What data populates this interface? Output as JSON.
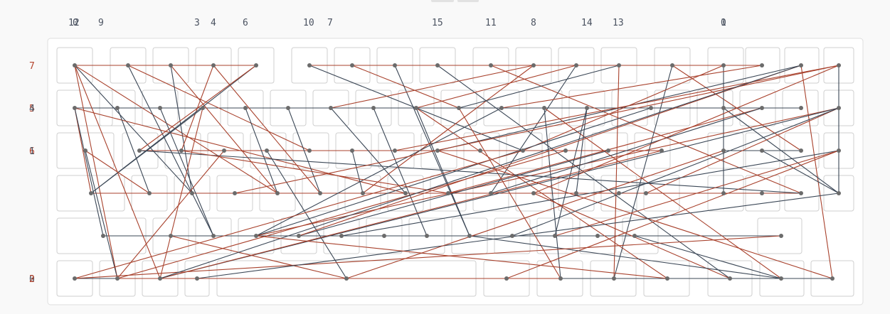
{
  "colors": {
    "board_border": "#dedede",
    "key_border": "#cfcfcf",
    "col_label": "#4a5260",
    "row_label": "#b5452f",
    "row_label_alt": "#4a5260",
    "wire_red": "#a8412c",
    "wire_dark": "#3b4756",
    "node": "#6b6b6b"
  },
  "col_labels": [
    {
      "id": "12",
      "text": "12"
    },
    {
      "id": "0b",
      "text": "0"
    },
    {
      "id": "9",
      "text": "9"
    },
    {
      "id": "3",
      "text": "3"
    },
    {
      "id": "4",
      "text": "4"
    },
    {
      "id": "6",
      "text": "6"
    },
    {
      "id": "10",
      "text": "10"
    },
    {
      "id": "7",
      "text": "7"
    },
    {
      "id": "15",
      "text": "15"
    },
    {
      "id": "11",
      "text": "11"
    },
    {
      "id": "8",
      "text": "8"
    },
    {
      "id": "14",
      "text": "14"
    },
    {
      "id": "13",
      "text": "13"
    },
    {
      "id": "0",
      "text": "0"
    },
    {
      "id": "1",
      "text": "1"
    }
  ],
  "row_labels": [
    {
      "id": "7",
      "text": "7"
    },
    {
      "id": "5",
      "text": "5"
    },
    {
      "id": "4",
      "text": "4"
    },
    {
      "id": "6",
      "text": "6"
    },
    {
      "id": "1",
      "text": "1"
    },
    {
      "id": "3",
      "text": "3"
    },
    {
      "id": "0",
      "text": "0"
    },
    {
      "id": "2",
      "text": "2"
    }
  ]
}
